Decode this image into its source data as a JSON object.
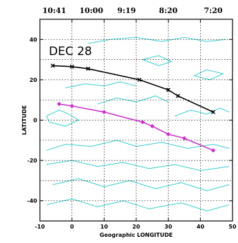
{
  "chart_data": {
    "type": "line",
    "title": "",
    "annotation": "DEC 28",
    "xlabel": "Geographic LONGITUDE",
    "ylabel": "LATITUDE",
    "xlim": [
      -10,
      50
    ],
    "ylim": [
      -50,
      50
    ],
    "x_ticks": [
      -10,
      0,
      10,
      20,
      30,
      40,
      50
    ],
    "x_tick_labels": [
      "-10",
      "0",
      "10",
      "20",
      "30",
      "40",
      "50"
    ],
    "y_ticks": [
      -40,
      -20,
      0,
      20,
      40
    ],
    "y_tick_labels": [
      "-40",
      "-20",
      "0",
      "20",
      "40"
    ],
    "top_time_labels": [
      {
        "x": -5.5,
        "label": "10:41"
      },
      {
        "x": 6,
        "label": "10:00"
      },
      {
        "x": 17,
        "label": "9:19"
      },
      {
        "x": 30,
        "label": "8:20"
      },
      {
        "x": 44,
        "label": "7:20"
      }
    ],
    "grid": true,
    "grid_style": "dotted",
    "colors": {
      "series_north": "#000000",
      "series_south": "#cc33cc",
      "contours": "#33cccc",
      "grid": "#000000"
    },
    "series": [
      {
        "marker": "cross",
        "color": "#000000",
        "x": [
          -6,
          0,
          5,
          21,
          30,
          33,
          44
        ],
        "y": [
          27,
          26.5,
          25.5,
          20,
          15,
          12,
          4
        ]
      },
      {
        "marker": "diamond",
        "color": "#cc33cc",
        "x": [
          -4,
          0,
          10,
          22,
          25,
          30,
          35,
          44
        ],
        "y": [
          8,
          7,
          4,
          -1,
          -3,
          -7,
          -9,
          -15
        ]
      }
    ],
    "contours": [
      [
        [
          5,
          38
        ],
        [
          12,
          40
        ],
        [
          20,
          41
        ],
        [
          28,
          39
        ],
        [
          35,
          41
        ],
        [
          42,
          39
        ],
        [
          48,
          40
        ]
      ],
      [
        [
          -2,
          16
        ],
        [
          4,
          18
        ],
        [
          10,
          17
        ],
        [
          15,
          19
        ],
        [
          20,
          17
        ]
      ],
      [
        [
          -8,
          2
        ],
        [
          -4,
          5
        ],
        [
          -1,
          3
        ],
        [
          2,
          0
        ],
        [
          -2,
          -3
        ],
        [
          -7,
          -1
        ],
        [
          -8,
          2
        ]
      ],
      [
        [
          8,
          8
        ],
        [
          14,
          11
        ],
        [
          20,
          9
        ],
        [
          26,
          12
        ],
        [
          30,
          9
        ]
      ],
      [
        [
          32,
          2
        ],
        [
          37,
          5
        ],
        [
          42,
          3
        ],
        [
          46,
          6
        ],
        [
          49,
          4
        ]
      ],
      [
        [
          -8,
          -15
        ],
        [
          -2,
          -12
        ],
        [
          6,
          -13
        ],
        [
          14,
          -10
        ],
        [
          20,
          -13
        ],
        [
          28,
          -11
        ],
        [
          36,
          -14
        ],
        [
          44,
          -12
        ],
        [
          49,
          -14
        ]
      ],
      [
        [
          -8,
          -22
        ],
        [
          0,
          -20
        ],
        [
          8,
          -23
        ],
        [
          16,
          -21
        ],
        [
          24,
          -24
        ],
        [
          32,
          -22
        ],
        [
          40,
          -25
        ],
        [
          49,
          -23
        ]
      ],
      [
        [
          -6,
          -32
        ],
        [
          2,
          -29
        ],
        [
          10,
          -33
        ],
        [
          18,
          -30
        ],
        [
          26,
          -34
        ],
        [
          34,
          -31
        ],
        [
          42,
          -35
        ],
        [
          49,
          -32
        ]
      ],
      [
        [
          -8,
          -42
        ],
        [
          0,
          -39
        ],
        [
          8,
          -43
        ],
        [
          16,
          -40
        ],
        [
          24,
          -44
        ],
        [
          34,
          -41
        ],
        [
          42,
          -45
        ],
        [
          49,
          -42
        ]
      ],
      [
        [
          22,
          30
        ],
        [
          27,
          32
        ],
        [
          31,
          29
        ],
        [
          27,
          27
        ],
        [
          22,
          30
        ]
      ],
      [
        [
          38,
          22
        ],
        [
          42,
          25
        ],
        [
          47,
          23
        ],
        [
          43,
          20
        ],
        [
          38,
          22
        ]
      ]
    ]
  }
}
